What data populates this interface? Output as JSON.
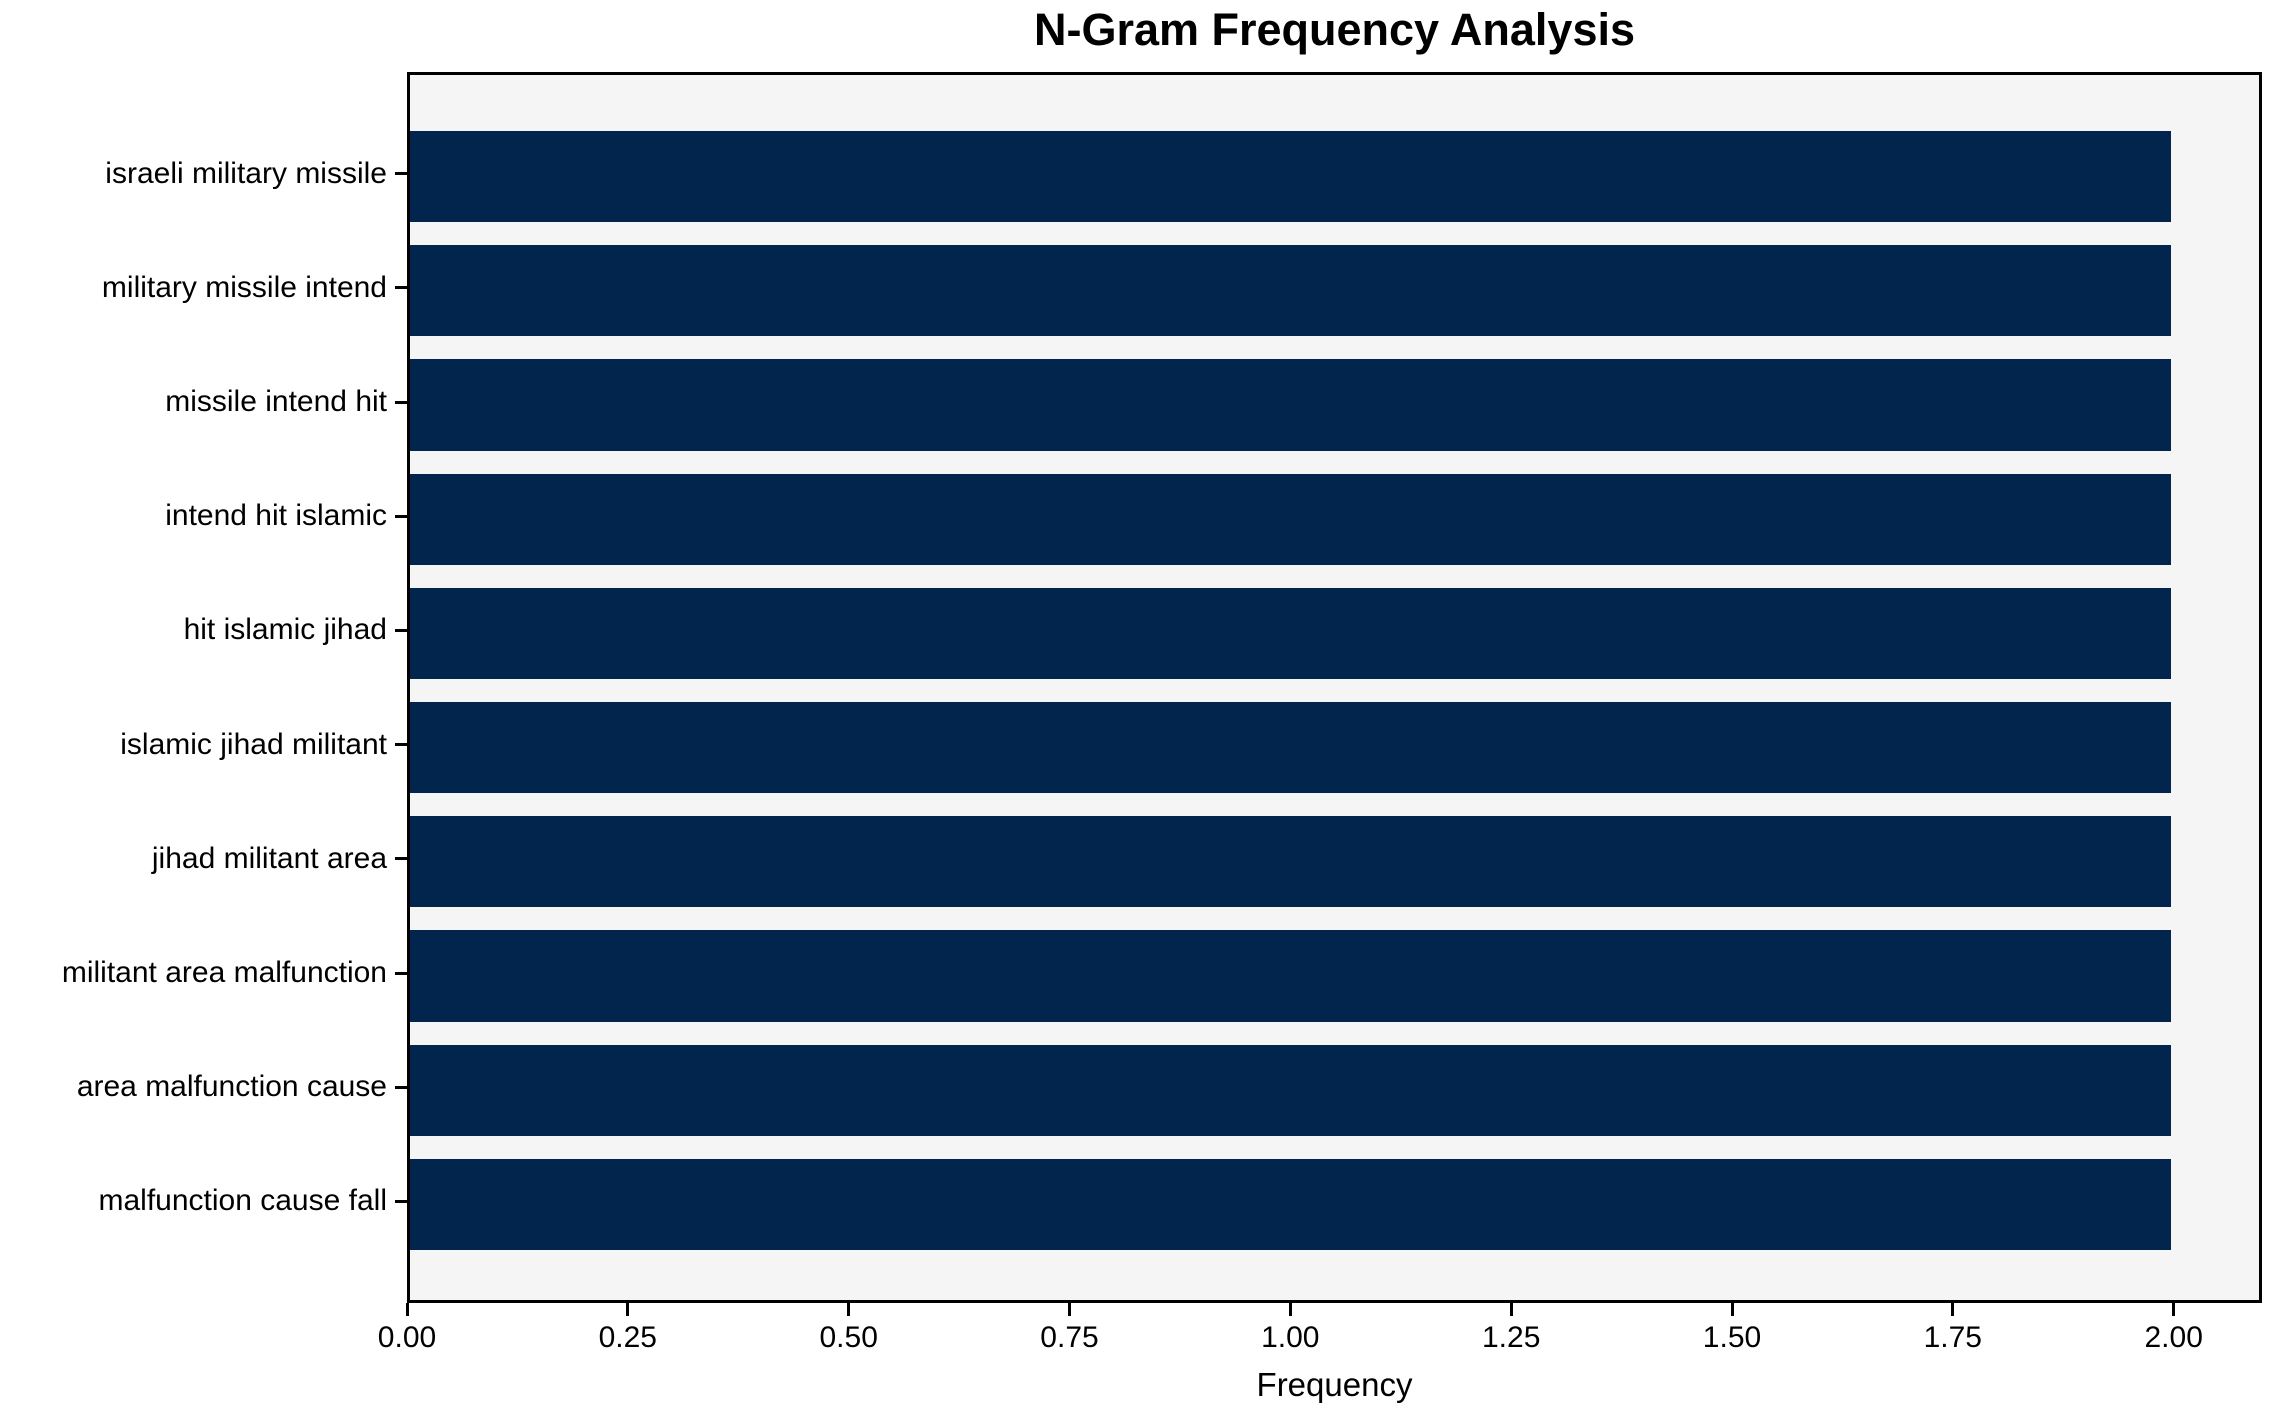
{
  "chart_data": {
    "type": "bar",
    "orientation": "horizontal",
    "title": "N-Gram Frequency Analysis",
    "xlabel": "Frequency",
    "ylabel": "",
    "categories": [
      "israeli military missile",
      "military missile intend",
      "missile intend hit",
      "intend hit islamic",
      "hit islamic jihad",
      "islamic jihad militant",
      "jihad militant area",
      "militant area malfunction",
      "area malfunction cause",
      "malfunction cause fall"
    ],
    "values": [
      2,
      2,
      2,
      2,
      2,
      2,
      2,
      2,
      2,
      2
    ],
    "xlim": [
      0,
      2.1
    ],
    "x_ticks": [
      0.0,
      0.25,
      0.5,
      0.75,
      1.0,
      1.25,
      1.5,
      1.75,
      2.0
    ],
    "x_tick_labels": [
      "0.00",
      "0.25",
      "0.50",
      "0.75",
      "1.00",
      "1.25",
      "1.50",
      "1.75",
      "2.00"
    ],
    "grid": false,
    "legend": null,
    "colors": {
      "bar": "#02254e",
      "plot_background": "#f5f5f6",
      "figure_background": "#ffffff",
      "spine": "#000000",
      "text": "#000000"
    }
  }
}
